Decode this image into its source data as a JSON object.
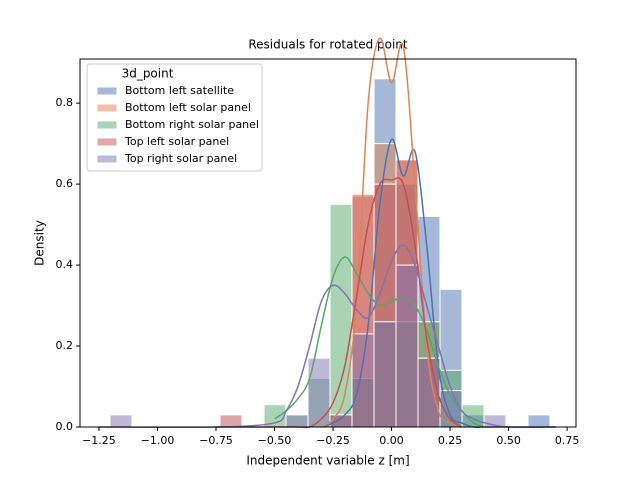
{
  "chart_data": {
    "type": "histogram",
    "title": "Residuals for rotated point",
    "x_label": "Independent variable z [m]",
    "y_label": "Density",
    "legend_title": "3d_point",
    "legend_position": "upper left",
    "bins": [
      -1.203,
      -1.109,
      -1.015,
      -0.921,
      -0.827,
      -0.733,
      -0.639,
      -0.545,
      -0.451,
      -0.357,
      -0.263,
      -0.169,
      -0.075,
      0.019,
      0.113,
      0.207,
      0.301,
      0.395,
      0.489,
      0.583,
      0.677
    ],
    "kde_x": [
      -1.25,
      -0.75,
      -0.5,
      -0.45,
      -0.4,
      -0.35,
      -0.3,
      -0.25,
      -0.2,
      -0.15,
      -0.1,
      -0.05,
      0,
      0.05,
      0.1,
      0.15,
      0.2,
      0.25,
      0.3,
      0.35,
      0.4,
      0.5,
      0.7
    ],
    "series": [
      {
        "name": "Bottom left satellite",
        "color": "#4c72b0",
        "values": [
          0,
          0,
          0,
          0,
          0,
          0,
          0,
          0,
          0,
          0,
          0,
          0.12,
          0.86,
          0.6,
          0.52,
          0.34,
          0.03,
          0,
          0,
          0.03
        ],
        "kde": [
          null,
          null,
          null,
          null,
          null,
          null,
          0.0,
          0.01,
          0.03,
          0.08,
          0.25,
          0.55,
          0.71,
          0.62,
          0.68,
          0.45,
          0.15,
          0.03,
          0.01,
          0.0,
          0.0,
          0.0,
          0.0
        ]
      },
      {
        "name": "Bottom left solar panel",
        "color": "#dd8452",
        "values": [
          0,
          0,
          0,
          0,
          0,
          0,
          0,
          0,
          0,
          0,
          0.03,
          0.57,
          0.7,
          0.66,
          0.26,
          0,
          0,
          0,
          0,
          0
        ],
        "kde": [
          null,
          null,
          null,
          null,
          null,
          null,
          0.0,
          0.02,
          0.08,
          0.3,
          0.8,
          0.96,
          0.85,
          0.94,
          0.6,
          0.2,
          0.04,
          0.01,
          0.0,
          null,
          null,
          null,
          null
        ]
      },
      {
        "name": "Bottom right solar panel",
        "color": "#55a868",
        "values": [
          0,
          0,
          0,
          0,
          0,
          0,
          0,
          0.055,
          0.03,
          0.12,
          0.55,
          0.12,
          0.26,
          0.26,
          0.26,
          0.14,
          0.055,
          0,
          0,
          0
        ],
        "kde": [
          null,
          null,
          0.02,
          0.04,
          0.07,
          0.12,
          0.25,
          0.37,
          0.42,
          0.38,
          0.33,
          0.3,
          0.31,
          0.32,
          0.3,
          0.24,
          0.15,
          0.08,
          0.04,
          0.01,
          0.0,
          null,
          null
        ]
      },
      {
        "name": "Top left solar panel",
        "color": "#c44e52",
        "values": [
          0,
          0,
          0,
          0,
          0,
          0.03,
          0,
          0,
          0,
          0,
          0.03,
          0.575,
          0.6,
          0.66,
          0.17,
          0,
          0,
          0,
          0,
          0
        ],
        "kde": [
          null,
          0.0,
          0.0,
          0.0,
          0.0,
          0.0,
          0.02,
          0.06,
          0.15,
          0.32,
          0.5,
          0.6,
          0.61,
          0.6,
          0.45,
          0.22,
          0.08,
          0.02,
          0.0,
          null,
          null,
          null,
          null
        ]
      },
      {
        "name": "Top right solar panel",
        "color": "#8172b3",
        "values": [
          0.03,
          0,
          0,
          0,
          0,
          0,
          0,
          0,
          0.03,
          0.17,
          0.03,
          0.23,
          0.26,
          0.4,
          0.17,
          0.09,
          0,
          0.03,
          0,
          0
        ],
        "kde": [
          0.0,
          0.0,
          0.01,
          0.04,
          0.1,
          0.2,
          0.31,
          0.35,
          0.33,
          0.29,
          0.27,
          0.33,
          0.41,
          0.45,
          0.4,
          0.3,
          0.2,
          0.1,
          0.04,
          0.02,
          0.01,
          0.0,
          0.0
        ]
      }
    ],
    "xlim": [
      -1.331,
      0.788
    ],
    "ylim": [
      0,
      0.909
    ],
    "xticks": [
      {
        "value": -1.25,
        "label": "−1.25"
      },
      {
        "value": -1.0,
        "label": "−1.00"
      },
      {
        "value": -0.75,
        "label": "−0.75"
      },
      {
        "value": -0.5,
        "label": "−0.50"
      },
      {
        "value": -0.25,
        "label": "−0.25"
      },
      {
        "value": 0,
        "label": "0.00"
      },
      {
        "value": 0.25,
        "label": "0.25"
      },
      {
        "value": 0.5,
        "label": "0.50"
      },
      {
        "value": 0.75,
        "label": "0.75"
      }
    ],
    "yticks": [
      {
        "value": 0,
        "label": "0.0"
      },
      {
        "value": 0.2,
        "label": "0.2"
      },
      {
        "value": 0.4,
        "label": "0.4"
      },
      {
        "value": 0.6,
        "label": "0.6"
      },
      {
        "value": 0.8,
        "label": "0.8"
      }
    ]
  }
}
